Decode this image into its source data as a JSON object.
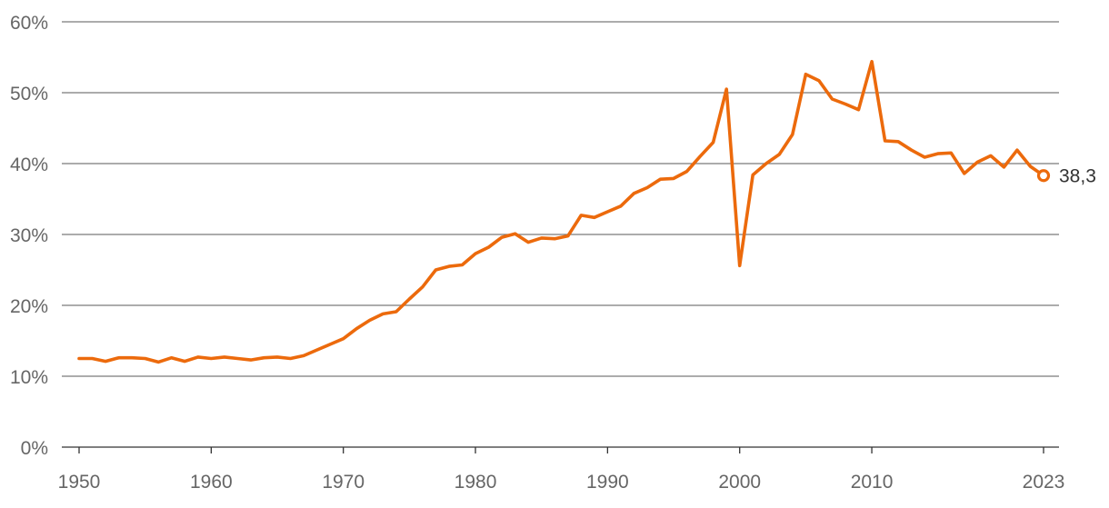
{
  "chart_data": {
    "type": "line",
    "title": "",
    "xlabel": "",
    "ylabel": "",
    "xlim": [
      1950,
      2023
    ],
    "ylim": [
      0,
      60
    ],
    "grid": true,
    "y_ticks": [
      {
        "value": 0,
        "label": "0%"
      },
      {
        "value": 10,
        "label": "10%"
      },
      {
        "value": 20,
        "label": "20%"
      },
      {
        "value": 30,
        "label": "30%"
      },
      {
        "value": 40,
        "label": "40%"
      },
      {
        "value": 50,
        "label": "50%"
      },
      {
        "value": 60,
        "label": "60%"
      }
    ],
    "x_ticks": [
      {
        "value": 1950,
        "label": "1950"
      },
      {
        "value": 1960,
        "label": "1960"
      },
      {
        "value": 1970,
        "label": "1970"
      },
      {
        "value": 1980,
        "label": "1980"
      },
      {
        "value": 1990,
        "label": "1990"
      },
      {
        "value": 2000,
        "label": "2000"
      },
      {
        "value": 2010,
        "label": "2010"
      },
      {
        "value": 2023,
        "label": "2023"
      }
    ],
    "series": [
      {
        "color": "#ec6a0c",
        "x": [
          1950,
          1951,
          1952,
          1953,
          1954,
          1955,
          1956,
          1957,
          1958,
          1959,
          1960,
          1961,
          1962,
          1963,
          1964,
          1965,
          1966,
          1967,
          1968,
          1969,
          1970,
          1971,
          1972,
          1973,
          1974,
          1975,
          1976,
          1977,
          1978,
          1979,
          1980,
          1981,
          1982,
          1983,
          1984,
          1985,
          1986,
          1987,
          1988,
          1989,
          1990,
          1991,
          1992,
          1993,
          1994,
          1995,
          1996,
          1997,
          1998,
          1999,
          2000,
          2001,
          2002,
          2003,
          2004,
          2005,
          2006,
          2007,
          2008,
          2009,
          2010,
          2011,
          2012,
          2013,
          2014,
          2015,
          2016,
          2017,
          2018,
          2019,
          2020,
          2021,
          2022,
          2023
        ],
        "values": [
          12.5,
          12.5,
          12.1,
          12.6,
          12.6,
          12.5,
          12.0,
          12.6,
          12.1,
          12.7,
          12.5,
          12.7,
          12.5,
          12.3,
          12.6,
          12.7,
          12.5,
          12.9,
          13.7,
          14.5,
          15.3,
          16.7,
          17.9,
          18.8,
          19.1,
          20.9,
          22.6,
          25.0,
          25.5,
          25.7,
          27.3,
          28.2,
          29.6,
          30.1,
          28.9,
          29.5,
          29.4,
          29.8,
          32.7,
          32.4,
          33.2,
          34.0,
          35.8,
          36.6,
          37.8,
          37.9,
          38.9,
          41.0,
          43.0,
          50.5,
          25.6,
          38.4,
          40.0,
          41.3,
          44.1,
          52.6,
          51.7,
          49.1,
          48.4,
          47.6,
          54.4,
          43.2,
          43.1,
          41.9,
          40.9,
          41.4,
          41.5,
          38.6,
          40.2,
          41.1,
          39.5,
          41.9,
          39.6,
          38.3
        ]
      }
    ],
    "end_label": {
      "x": 2023,
      "value": 38.3,
      "text": "38,3"
    }
  }
}
